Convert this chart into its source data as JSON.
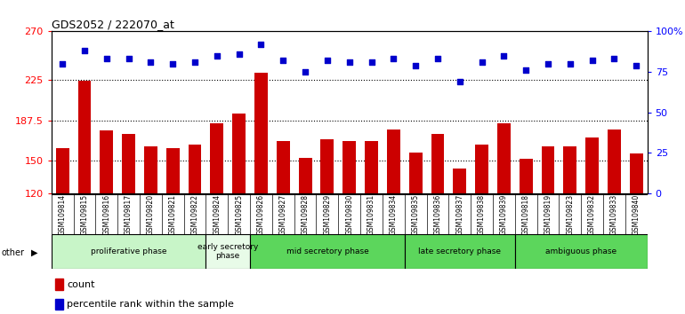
{
  "title": "GDS2052 / 222070_at",
  "samples": [
    "GSM109814",
    "GSM109815",
    "GSM109816",
    "GSM109817",
    "GSM109820",
    "GSM109821",
    "GSM109822",
    "GSM109824",
    "GSM109825",
    "GSM109826",
    "GSM109827",
    "GSM109828",
    "GSM109829",
    "GSM109830",
    "GSM109831",
    "GSM109834",
    "GSM109835",
    "GSM109836",
    "GSM109837",
    "GSM109838",
    "GSM109839",
    "GSM109818",
    "GSM109819",
    "GSM109823",
    "GSM109832",
    "GSM109833",
    "GSM109840"
  ],
  "counts": [
    162,
    224,
    178,
    175,
    163,
    162,
    165,
    185,
    194,
    232,
    168,
    153,
    170,
    168,
    168,
    179,
    158,
    175,
    143,
    165,
    185,
    152,
    163,
    163,
    172,
    179,
    157
  ],
  "percentile_ranks": [
    80,
    88,
    83,
    83,
    81,
    80,
    81,
    85,
    86,
    92,
    82,
    75,
    82,
    81,
    81,
    83,
    79,
    83,
    69,
    81,
    85,
    76,
    80,
    80,
    82,
    83,
    79
  ],
  "phases": [
    {
      "label": "proliferative phase",
      "start": 0,
      "end": 7,
      "color": "#c8f5c8"
    },
    {
      "label": "early secretory\nphase",
      "start": 7,
      "end": 9,
      "color": "#e8fbe8"
    },
    {
      "label": "mid secretory phase",
      "start": 9,
      "end": 16,
      "color": "#5cd65c"
    },
    {
      "label": "late secretory phase",
      "start": 16,
      "end": 21,
      "color": "#5cd65c"
    },
    {
      "label": "ambiguous phase",
      "start": 21,
      "end": 27,
      "color": "#5cd65c"
    }
  ],
  "ylim_left": [
    120,
    270
  ],
  "ylim_right": [
    0,
    100
  ],
  "yticks_left": [
    120,
    150,
    187.5,
    225,
    270
  ],
  "ytick_labels_left": [
    "120",
    "150",
    "187.5",
    "225",
    "270"
  ],
  "yticks_right": [
    0,
    25,
    50,
    75,
    100
  ],
  "ytick_labels_right": [
    "0",
    "25",
    "50",
    "75",
    "100%"
  ],
  "bar_color": "#CC0000",
  "dot_color": "#0000CC",
  "bg_color": "#ffffff",
  "xtick_bg": "#d0d0d0"
}
